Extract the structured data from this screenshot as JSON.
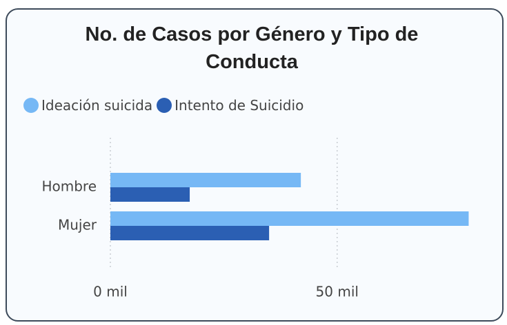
{
  "chart_data": {
    "type": "bar",
    "orientation": "horizontal",
    "title": "No. de Casos por Género y Tipo de Conducta",
    "categories": [
      "Hombre",
      "Mujer"
    ],
    "series": [
      {
        "name": "Ideación suicida",
        "color": "#76b8f5",
        "values": [
          42000,
          79000
        ]
      },
      {
        "name": "Intento de Suicidio",
        "color": "#2b5fb3",
        "values": [
          17500,
          35000
        ]
      }
    ],
    "xlim": [
      0,
      80000
    ],
    "xticks": [
      {
        "value": 0,
        "label": "0 mil"
      },
      {
        "value": 50000,
        "label": "50 mil"
      }
    ],
    "grid": true,
    "legend": "top-left"
  }
}
